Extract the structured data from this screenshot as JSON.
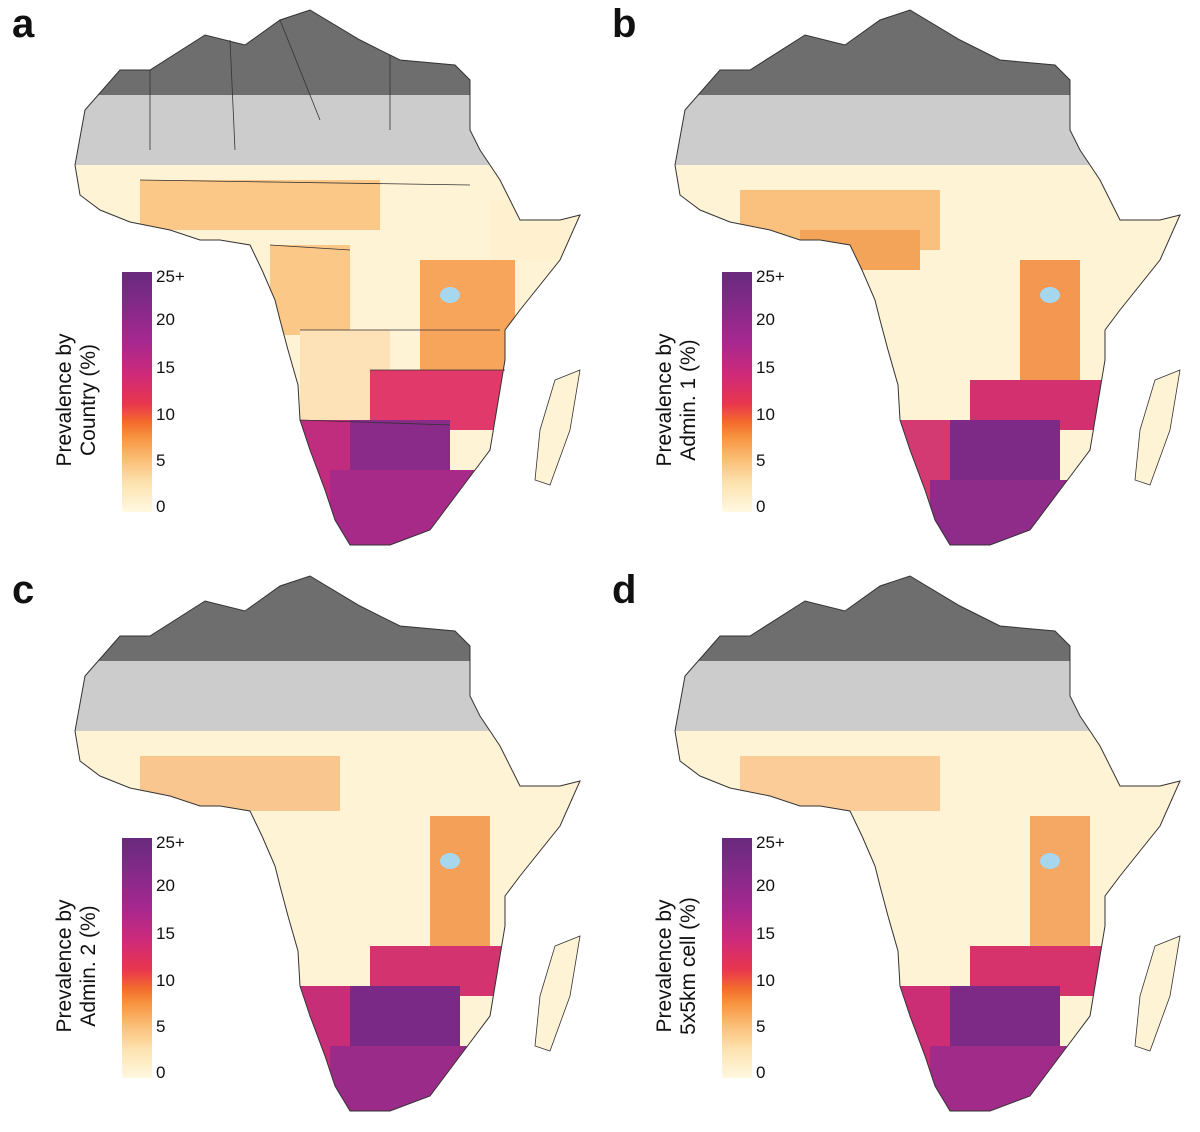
{
  "panels": [
    {
      "label": "a",
      "legend_line1": "Prevalence by",
      "legend_line2": "Country (%)"
    },
    {
      "label": "b",
      "legend_line1": "Prevalence by",
      "legend_line2": "Admin. 1  (%)"
    },
    {
      "label": "c",
      "legend_line1": "Prevalence by",
      "legend_line2": "Admin. 2 (%)"
    },
    {
      "label": "d",
      "legend_line1": "Prevalence by",
      "legend_line2": "5x5km cell (%)"
    }
  ],
  "legend_ticks": [
    "25+",
    "20",
    "15",
    "10",
    "5",
    "0"
  ],
  "colors": {
    "no_data_dark": "#6e6e6e",
    "no_data_light": "#cccccc",
    "water": "#a7d6ef",
    "scale_low": "#fff8e1",
    "scale_mid": "#f36b2c",
    "scale_high_mid": "#cf2a78",
    "scale_high": "#6b2a7e"
  }
}
